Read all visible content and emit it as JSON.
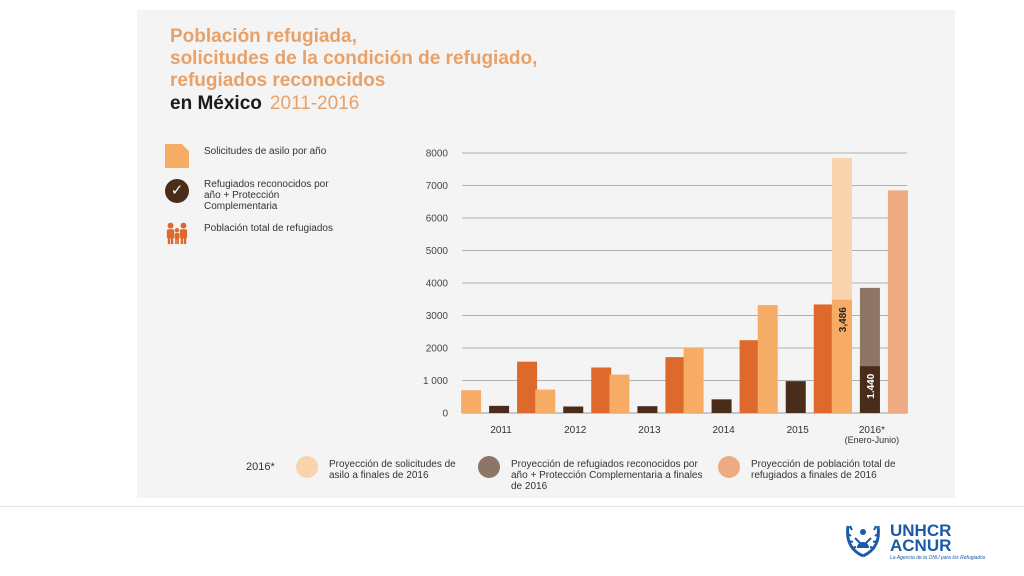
{
  "title_lines": [
    "Población refugiada,",
    "solicitudes de la condición de refugiado,",
    "refugiados  reconocidos"
  ],
  "subtitle": {
    "place": "en México",
    "years": "2011-2016"
  },
  "legend": [
    {
      "label": "Solicitudes de asilo por año",
      "color": "#f6ac65",
      "icon": "document-icon"
    },
    {
      "label": "Refugiados reconocidos por año + Protección Complementaria",
      "color": "#4a2c1a",
      "icon": "check-icon"
    },
    {
      "label": "Población total de refugiados",
      "color": "#dd6a2c",
      "icon": "family-icon"
    }
  ],
  "bottom_legend": {
    "tag": "2016*",
    "items": [
      {
        "label": "Proyección de solicitudes de asilo a finales de 2016",
        "color": "#f9d3ae"
      },
      {
        "label": "Proyección de refugiados reconocidos por año + Protección Complementaria a finales de 2016",
        "color": "#8d7665"
      },
      {
        "label": "Proyección de población total de refugiados a finales de 2016",
        "color": "#eeaa82"
      }
    ]
  },
  "logo": {
    "line1": "UNHCR",
    "line2": "ACNUR",
    "tagline": "La Agencia de la ONU para los Refugiados"
  },
  "chart_data": {
    "type": "bar",
    "categories": [
      "2011",
      "2012",
      "2013",
      "2014",
      "2015",
      "2016*"
    ],
    "category_sublabels": [
      "",
      "",
      "",
      "",
      "",
      "(Enero-Junio)"
    ],
    "series": [
      {
        "name": "Solicitudes de asilo por año",
        "values": [
          700,
          720,
          1180,
          2000,
          3320,
          3486
        ],
        "color": "#f6ac65"
      },
      {
        "name": "Refugiados reconocidos por año + Protección Complementaria",
        "values": [
          220,
          200,
          210,
          420,
          980,
          1440
        ],
        "color": "#4a2c1a"
      },
      {
        "name": "Población total de refugiados",
        "values": [
          1580,
          1400,
          1720,
          2240,
          3340,
          null
        ],
        "color": "#dd6a2c"
      }
    ],
    "projections": [
      {
        "name": "Proyección de solicitudes de asilo a finales de 2016",
        "category": "2016*",
        "value": 7850,
        "color": "#f9d3ae"
      },
      {
        "name": "Proyección de refugiados reconocidos por año + Protección Complementaria a finales de 2016",
        "category": "2016*",
        "value": 3850,
        "color": "#8d7665"
      },
      {
        "name": "Proyección de población total de refugiados a finales de 2016",
        "category": "2016*",
        "value": 6850,
        "color": "#eeaa82"
      }
    ],
    "data_labels": [
      {
        "series": 0,
        "category": "2016*",
        "text": "3,486"
      },
      {
        "series": 1,
        "category": "2016*",
        "text": "1.440"
      }
    ],
    "ylim": [
      0,
      8000
    ],
    "yticks": [
      0,
      1000,
      2000,
      3000,
      4000,
      5000,
      6000,
      7000,
      8000
    ],
    "ytick_labels": [
      "0",
      "1 000",
      "2000",
      "3000",
      "4000",
      "5000",
      "6000",
      "7000",
      "8000"
    ],
    "grid": true,
    "legend_position": "left"
  }
}
